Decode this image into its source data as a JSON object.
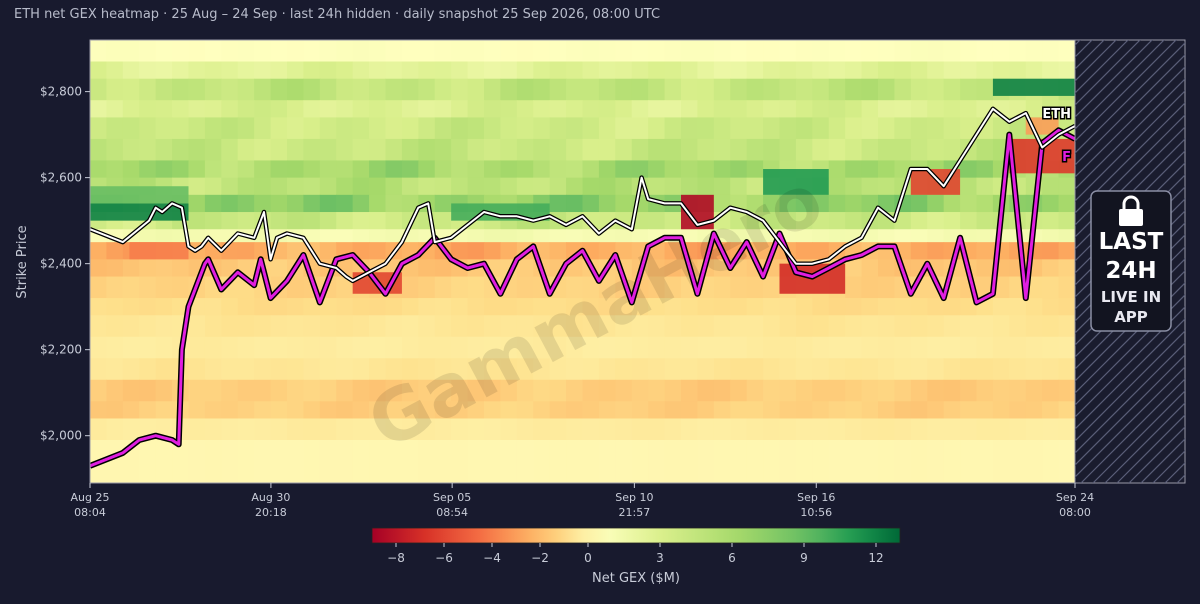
{
  "title": "ETH net GEX heatmap · 25 Aug – 24 Sep · last 24h hidden · daily snapshot 25 Sep 2026, 08:00 UTC",
  "watermark": "GammaHero",
  "lock_panel": {
    "lines": [
      "LAST",
      "24H"
    ],
    "sub_lines": [
      "LIVE IN",
      "APP"
    ],
    "icon": "lock-icon"
  },
  "series_labels": {
    "spot": "ETH",
    "flip": "F"
  },
  "colors": {
    "background": "#181a2e",
    "spot_line": "#ffffff",
    "flip_line": "#e01ee0",
    "lock_bg": "#121420",
    "hatch": "#5a5e78"
  },
  "chart_data": {
    "type": "heatmap",
    "title": "ETH net GEX heatmap · 25 Aug – 24 Sep · last 24h hidden · daily snapshot 25 Sep 2026, 08:00 UTC",
    "xlabel": "",
    "ylabel": "Strike Price",
    "ylim": [
      1890,
      2920
    ],
    "yticks": [
      2000,
      2200,
      2400,
      2600,
      2800
    ],
    "ytick_labels": [
      "$2,000",
      "$2,200",
      "$2,400",
      "$2,600",
      "$2,800"
    ],
    "xlim": [
      "Aug 25 08:04",
      "Sep 24 08:00"
    ],
    "xticks": [
      {
        "day": 0.0,
        "line1": "Aug 25",
        "line2": "08:04"
      },
      {
        "day": 5.51,
        "line1": "Aug 30",
        "line2": "20:18"
      },
      {
        "day": 11.03,
        "line1": "Sep 05",
        "line2": "08:54"
      },
      {
        "day": 16.58,
        "line1": "Sep 10",
        "line2": "21:57"
      },
      {
        "day": 22.12,
        "line1": "Sep 16",
        "line2": "10:56"
      },
      {
        "day": 30.0,
        "line1": "Sep 24",
        "line2": "08:00"
      }
    ],
    "colorbar": {
      "label": "Net GEX ($M)",
      "min": -9,
      "max": 13,
      "ticks": [
        -8,
        -6,
        -4,
        -2,
        0,
        3,
        6,
        9,
        12
      ],
      "colormap": "RdYlGn"
    },
    "heat_bands": [
      {
        "lo": 2870,
        "hi": 2920,
        "value": 0.6
      },
      {
        "lo": 2830,
        "hi": 2870,
        "value": 2.5
      },
      {
        "lo": 2780,
        "hi": 2830,
        "value": 4.5
      },
      {
        "lo": 2740,
        "hi": 2780,
        "value": 3.0
      },
      {
        "lo": 2690,
        "hi": 2740,
        "value": 3.8
      },
      {
        "lo": 2640,
        "hi": 2690,
        "value": 4.2
      },
      {
        "lo": 2600,
        "hi": 2640,
        "value": 6.0
      },
      {
        "lo": 2560,
        "hi": 2600,
        "value": 5.0
      },
      {
        "lo": 2520,
        "hi": 2560,
        "value": 7.0
      },
      {
        "lo": 2480,
        "hi": 2520,
        "value": 4.0
      },
      {
        "lo": 2450,
        "hi": 2480,
        "value": 1.2
      },
      {
        "lo": 2410,
        "hi": 2450,
        "value": -2.5
      },
      {
        "lo": 2370,
        "hi": 2410,
        "value": -1.6
      },
      {
        "lo": 2320,
        "hi": 2370,
        "value": -1.2
      },
      {
        "lo": 2280,
        "hi": 2320,
        "value": -0.8
      },
      {
        "lo": 2230,
        "hi": 2280,
        "value": -0.5
      },
      {
        "lo": 2180,
        "hi": 2230,
        "value": -0.3
      },
      {
        "lo": 2130,
        "hi": 2180,
        "value": -0.5
      },
      {
        "lo": 2080,
        "hi": 2130,
        "value": -1.4
      },
      {
        "lo": 2040,
        "hi": 2080,
        "value": -1.3
      },
      {
        "lo": 1990,
        "hi": 2040,
        "value": -0.3
      },
      {
        "lo": 1890,
        "hi": 1990,
        "value": 0.1
      }
    ],
    "heat_patches": [
      {
        "d0": 0.0,
        "d1": 3.0,
        "lo": 2500,
        "hi": 2540,
        "value": 12.0
      },
      {
        "d0": 0.0,
        "d1": 3.0,
        "lo": 2540,
        "hi": 2580,
        "value": 9.0
      },
      {
        "d0": 1.2,
        "d1": 3.0,
        "lo": 2410,
        "hi": 2450,
        "value": -4.0
      },
      {
        "d0": 8.0,
        "d1": 9.5,
        "lo": 2330,
        "hi": 2380,
        "value": -6.0
      },
      {
        "d0": 11.0,
        "d1": 14.0,
        "lo": 2500,
        "hi": 2540,
        "value": 10.0
      },
      {
        "d0": 18.0,
        "d1": 19.0,
        "lo": 2480,
        "hi": 2560,
        "value": -8.5
      },
      {
        "d0": 20.5,
        "d1": 22.5,
        "lo": 2560,
        "hi": 2620,
        "value": 11.0
      },
      {
        "d0": 21.0,
        "d1": 23.0,
        "lo": 2330,
        "hi": 2400,
        "value": -7.0
      },
      {
        "d0": 25.0,
        "d1": 26.5,
        "lo": 2560,
        "hi": 2620,
        "value": -6.0
      },
      {
        "d0": 27.5,
        "d1": 30.0,
        "lo": 2790,
        "hi": 2830,
        "value": 12.0
      },
      {
        "d0": 28.0,
        "d1": 30.0,
        "lo": 2610,
        "hi": 2690,
        "value": -6.5
      },
      {
        "d0": 28.5,
        "d1": 29.5,
        "lo": 2700,
        "hi": 2740,
        "value": -3.0
      }
    ],
    "series": [
      {
        "name": "ETH",
        "x": [
          0,
          1.0,
          1.8,
          2.0,
          2.2,
          2.5,
          2.8,
          3.0,
          3.2,
          3.4,
          3.6,
          4.0,
          4.5,
          5.0,
          5.3,
          5.5,
          5.7,
          6.0,
          6.5,
          7.0,
          7.5,
          7.8,
          8.0,
          8.5,
          9.0,
          9.5,
          10.0,
          10.3,
          10.5,
          11.0,
          12.0,
          12.5,
          13.0,
          13.5,
          14.0,
          14.5,
          15.0,
          15.5,
          16.0,
          16.5,
          16.8,
          17.0,
          17.5,
          18.0,
          18.5,
          19.0,
          19.5,
          20.0,
          20.5,
          21.0,
          21.5,
          22.0,
          22.5,
          23.0,
          23.5,
          24.0,
          24.5,
          25.0,
          25.5,
          26.0,
          26.5,
          27.0,
          27.5,
          28.0,
          28.5,
          29.0,
          29.5,
          30.0
        ],
        "y": [
          2480,
          2450,
          2500,
          2530,
          2520,
          2540,
          2530,
          2440,
          2430,
          2440,
          2460,
          2430,
          2470,
          2460,
          2520,
          2410,
          2460,
          2470,
          2460,
          2400,
          2390,
          2370,
          2360,
          2380,
          2400,
          2450,
          2530,
          2540,
          2450,
          2460,
          2520,
          2510,
          2510,
          2500,
          2510,
          2490,
          2510,
          2470,
          2500,
          2480,
          2600,
          2550,
          2540,
          2540,
          2490,
          2500,
          2530,
          2520,
          2500,
          2450,
          2400,
          2400,
          2410,
          2440,
          2460,
          2530,
          2500,
          2620,
          2620,
          2580,
          2640,
          2700,
          2760,
          2730,
          2750,
          2670,
          2700,
          2720
        ]
      },
      {
        "name": "F",
        "x": [
          0,
          1.0,
          1.5,
          2.0,
          2.5,
          2.7,
          2.8,
          3.0,
          3.5,
          3.6,
          4.0,
          4.5,
          5.0,
          5.2,
          5.5,
          6.0,
          6.5,
          7.0,
          7.5,
          8.0,
          8.5,
          9.0,
          9.5,
          10.0,
          10.5,
          11.0,
          11.5,
          12.0,
          12.5,
          13.0,
          13.5,
          14.0,
          14.5,
          15.0,
          15.5,
          16.0,
          16.5,
          17.0,
          17.5,
          18.0,
          18.5,
          19.0,
          19.5,
          20.0,
          20.5,
          21.0,
          21.5,
          22.0,
          22.5,
          23.0,
          23.5,
          24.0,
          24.5,
          25.0,
          25.5,
          26.0,
          26.5,
          27.0,
          27.5,
          28.0,
          28.5,
          29.0,
          29.5,
          30.0
        ],
        "y": [
          1930,
          1960,
          1990,
          2000,
          1990,
          1980,
          2200,
          2300,
          2400,
          2410,
          2340,
          2380,
          2350,
          2410,
          2320,
          2360,
          2420,
          2310,
          2410,
          2420,
          2380,
          2330,
          2400,
          2420,
          2460,
          2410,
          2390,
          2400,
          2330,
          2410,
          2440,
          2330,
          2400,
          2430,
          2360,
          2420,
          2310,
          2440,
          2460,
          2460,
          2330,
          2470,
          2390,
          2450,
          2370,
          2470,
          2380,
          2370,
          2390,
          2410,
          2420,
          2440,
          2440,
          2330,
          2400,
          2320,
          2460,
          2310,
          2330,
          2700,
          2320,
          2680,
          2710,
          2690
        ]
      }
    ],
    "hidden_region": {
      "from_day": 30.0,
      "label": "last 24h hidden"
    }
  }
}
